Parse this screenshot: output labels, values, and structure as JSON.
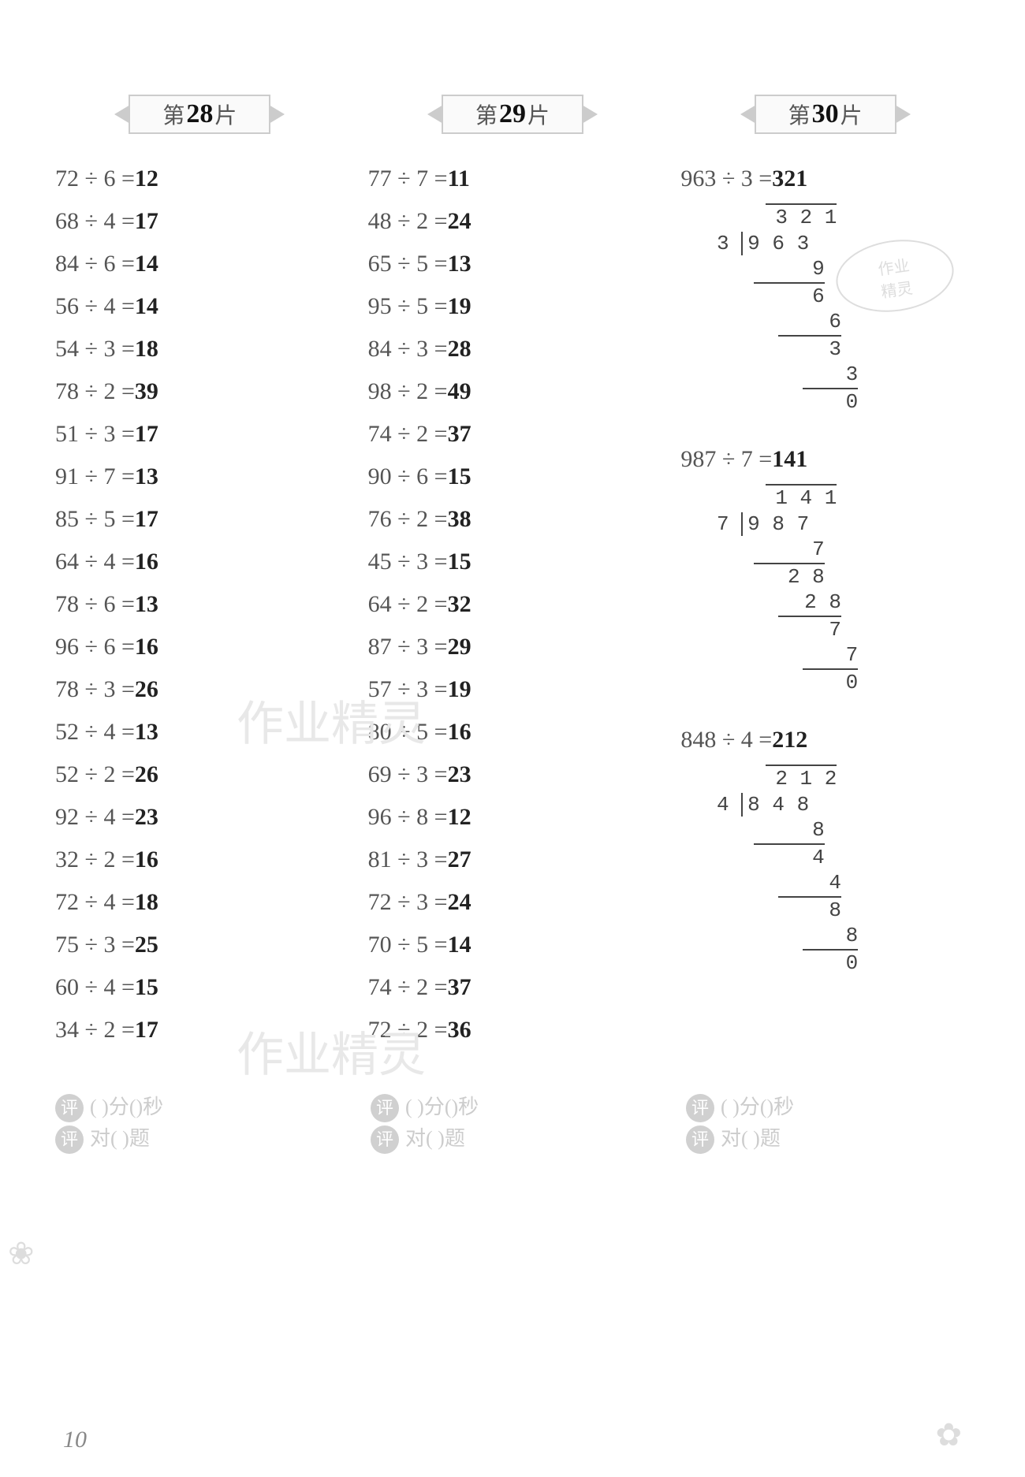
{
  "page_number": "10",
  "banner": {
    "pre": "第",
    "suf": "片"
  },
  "watermark_text": "作业精灵",
  "stamp": {
    "line1": "作业",
    "line2": "精灵"
  },
  "columns": [
    {
      "num": "28",
      "equations": [
        {
          "expr": "72 ÷ 6 =",
          "ans": "12"
        },
        {
          "expr": "68 ÷ 4 =",
          "ans": "17"
        },
        {
          "expr": "84 ÷ 6 =",
          "ans": "14"
        },
        {
          "expr": "56 ÷ 4 =",
          "ans": "14"
        },
        {
          "expr": "54 ÷ 3 =",
          "ans": "18"
        },
        {
          "expr": "78 ÷ 2 =",
          "ans": "39"
        },
        {
          "expr": "51 ÷ 3 =",
          "ans": "17"
        },
        {
          "expr": "91 ÷ 7 =",
          "ans": "13"
        },
        {
          "expr": "85 ÷ 5 =",
          "ans": "17"
        },
        {
          "expr": "64 ÷ 4 =",
          "ans": "16"
        },
        {
          "expr": "78 ÷ 6 =",
          "ans": "13"
        },
        {
          "expr": "96 ÷ 6 =",
          "ans": "16"
        },
        {
          "expr": "78 ÷ 3 =",
          "ans": "26"
        },
        {
          "expr": "52 ÷ 4 =",
          "ans": "13"
        },
        {
          "expr": "52 ÷ 2 =",
          "ans": "26"
        },
        {
          "expr": "92 ÷ 4 =",
          "ans": "23"
        },
        {
          "expr": "32 ÷ 2 =",
          "ans": "16"
        },
        {
          "expr": "72 ÷ 4 =",
          "ans": "18"
        },
        {
          "expr": "75 ÷ 3 =",
          "ans": "25"
        },
        {
          "expr": "60 ÷ 4 =",
          "ans": "15"
        },
        {
          "expr": "34 ÷ 2 =",
          "ans": "17"
        }
      ]
    },
    {
      "num": "29",
      "equations": [
        {
          "expr": "77 ÷ 7 =",
          "ans": "11"
        },
        {
          "expr": "48 ÷ 2 =",
          "ans": "24"
        },
        {
          "expr": "65 ÷ 5 =",
          "ans": "13"
        },
        {
          "expr": "95 ÷ 5 =",
          "ans": "19"
        },
        {
          "expr": "84 ÷ 3 =",
          "ans": "28"
        },
        {
          "expr": "98 ÷ 2 =",
          "ans": "49"
        },
        {
          "expr": "74 ÷ 2 =",
          "ans": "37"
        },
        {
          "expr": "90 ÷ 6 =",
          "ans": "15"
        },
        {
          "expr": "76 ÷ 2 =",
          "ans": "38"
        },
        {
          "expr": "45 ÷ 3 =",
          "ans": "15"
        },
        {
          "expr": "64 ÷ 2 =",
          "ans": "32"
        },
        {
          "expr": "87 ÷ 3 =",
          "ans": "29"
        },
        {
          "expr": "57 ÷ 3 =",
          "ans": "19"
        },
        {
          "expr": "80 ÷ 5 =",
          "ans": "16"
        },
        {
          "expr": "69 ÷ 3 =",
          "ans": "23"
        },
        {
          "expr": "96 ÷ 8 =",
          "ans": "12"
        },
        {
          "expr": "81 ÷ 3 =",
          "ans": "27"
        },
        {
          "expr": "72 ÷ 3 =",
          "ans": "24"
        },
        {
          "expr": "70 ÷ 5 =",
          "ans": "14"
        },
        {
          "expr": "74 ÷ 2 =",
          "ans": "37"
        },
        {
          "expr": "72 ÷ 2 =",
          "ans": "36"
        }
      ]
    },
    {
      "num": "30",
      "problems": [
        {
          "head_expr": "963 ÷ 3 =",
          "head_ans": "321",
          "divisor": "3",
          "dividend": "9 6 3",
          "quotient": "3 2 1",
          "steps": [
            {
              "val": "9",
              "rule": 0
            },
            {
              "val": "6",
              "rule": 1
            },
            {
              "val": "6",
              "rule": 0
            },
            {
              "val": "3",
              "rule": 1
            },
            {
              "val": "3",
              "rule": 0
            },
            {
              "val": "0",
              "rule": 1
            }
          ]
        },
        {
          "head_expr": "987 ÷ 7 =",
          "head_ans": "141",
          "divisor": "7",
          "dividend": "9 8 7",
          "quotient": "1 4 1",
          "steps": [
            {
              "val": "7",
              "rule": 0
            },
            {
              "val": "2 8",
              "rule": 1
            },
            {
              "val": "2 8",
              "rule": 0
            },
            {
              "val": "7",
              "rule": 1
            },
            {
              "val": "7",
              "rule": 0
            },
            {
              "val": "0",
              "rule": 1
            }
          ]
        },
        {
          "head_expr": "848 ÷ 4 =",
          "head_ans": "212",
          "divisor": "4",
          "dividend": "8 4 8",
          "quotient": "2 1 2",
          "steps": [
            {
              "val": "8",
              "rule": 0
            },
            {
              "val": "4",
              "rule": 1
            },
            {
              "val": "4",
              "rule": 0
            },
            {
              "val": "8",
              "rule": 1
            },
            {
              "val": "8",
              "rule": 0
            },
            {
              "val": "0",
              "rule": 1
            }
          ]
        }
      ]
    }
  ],
  "footer": {
    "line1_label1": "(    )分(",
    "line1_label2": ")秒",
    "line2_pre": "对(",
    "line2_suf": ")题",
    "circ1": "评",
    "circ2": "评"
  }
}
